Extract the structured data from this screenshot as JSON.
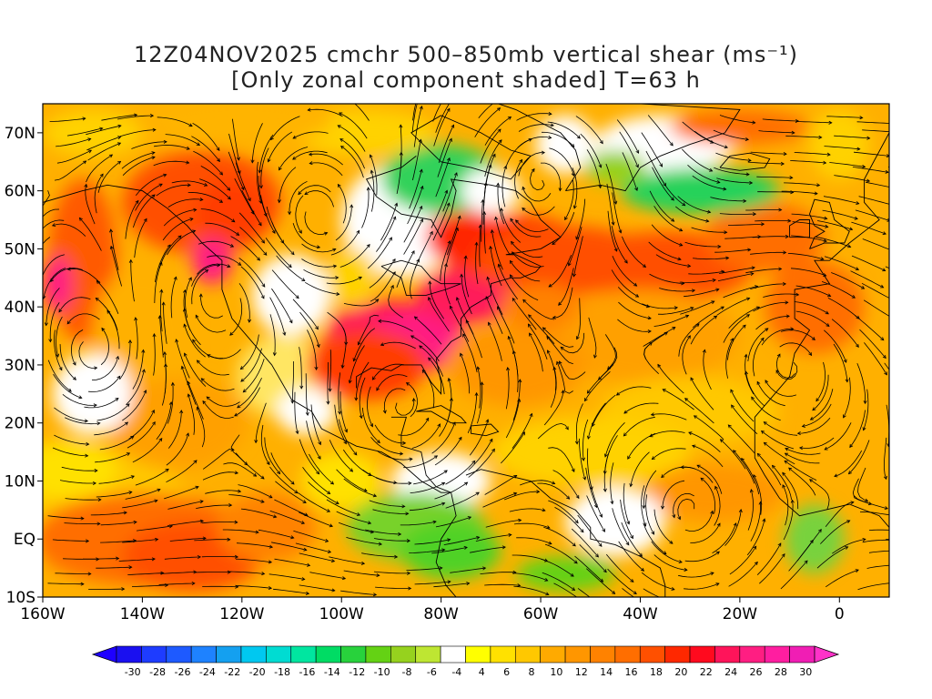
{
  "title_line1": "12Z04NOV2025 cmchr 500–850mb vertical shear (ms⁻¹)",
  "title_line2": "[Only zonal component shaded] T=63 h",
  "lat_labels": [
    "70N",
    "60N",
    "50N",
    "40N",
    "30N",
    "20N",
    "10N",
    "EQ",
    "10S"
  ],
  "lon_labels": [
    "160W",
    "140W",
    "120W",
    "100W",
    "80W",
    "60W",
    "40W",
    "20W",
    "0"
  ],
  "colorbar": {
    "labels": [
      "-30",
      "-28",
      "-26",
      "-24",
      "-22",
      "-20",
      "-18",
      "-16",
      "-14",
      "-12",
      "-10",
      "-8",
      "-6",
      "-4",
      "4",
      "6",
      "8",
      "10",
      "12",
      "14",
      "16",
      "18",
      "20",
      "22",
      "24",
      "26",
      "28",
      "30"
    ],
    "colors": [
      "#1a10f0",
      "#1e3cff",
      "#1e5aff",
      "#1e82ff",
      "#14a0f0",
      "#00c8f0",
      "#00dcd2",
      "#00e6a0",
      "#00dc64",
      "#28d23c",
      "#64d214",
      "#96d21e",
      "#bee632",
      "#ffffff",
      "#ffff00",
      "#ffe100",
      "#ffc800",
      "#ffaa00",
      "#ff9600",
      "#ff8200",
      "#ff6e00",
      "#ff5000",
      "#ff2800",
      "#ff0a1e",
      "#ff145a",
      "#ff1e82",
      "#ff1ea0",
      "#f01eb4"
    ],
    "under_color": "#1e00ff",
    "over_color": "#ff32c8"
  }
}
